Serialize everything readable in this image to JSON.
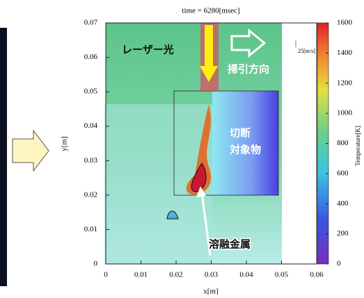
{
  "chart_data": {
    "type": "heatmap",
    "title": "time = 6280[msec]",
    "xlabel": "x[m]",
    "ylabel": "y[m]",
    "xlim": [
      0,
      0.06
    ],
    "ylim": [
      0,
      0.07
    ],
    "xticks": [
      0,
      0.01,
      0.02,
      0.03,
      0.04,
      0.05,
      0.06
    ],
    "yticks": [
      0,
      0.01,
      0.02,
      0.03,
      0.04,
      0.05,
      0.06,
      0.07
    ],
    "colorbar": {
      "label": "Temperature[K]",
      "lim": [
        0,
        1600
      ],
      "ticks": [
        0,
        200,
        400,
        600,
        800,
        1000,
        1200,
        1400,
        1600
      ]
    },
    "vector_scale": "25[m/s]",
    "annotations": [
      "レーザー光",
      "掃引方向",
      "切断",
      "対象物",
      "溶融金属"
    ]
  }
}
